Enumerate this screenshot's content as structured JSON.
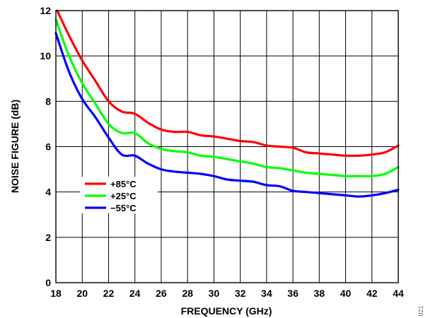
{
  "chart_data": {
    "type": "line",
    "title": "",
    "xlabel": "FREQUENCY (GHz)",
    "ylabel": "NOISE FIGURE (dB)",
    "xlim": [
      18,
      44
    ],
    "ylim": [
      0,
      12
    ],
    "xticks": [
      "18",
      "20",
      "22",
      "24",
      "26",
      "28",
      "30",
      "32",
      "34",
      "36",
      "38",
      "40",
      "42",
      "44"
    ],
    "yticks": [
      "0",
      "2",
      "4",
      "6",
      "8",
      "10",
      "12"
    ],
    "grid": true,
    "legend_position": "center-left",
    "figure_code": "021",
    "series": [
      {
        "name": "+85°C",
        "color": "#ff0000",
        "x": [
          18.1,
          19,
          20,
          21,
          22,
          23,
          24,
          25,
          26,
          27,
          28,
          29,
          30,
          31,
          32,
          33,
          34,
          35,
          36,
          37,
          38,
          39,
          40,
          41,
          42,
          43,
          44
        ],
        "y": [
          12,
          10.9,
          9.8,
          8.9,
          8.0,
          7.55,
          7.45,
          7.05,
          6.75,
          6.65,
          6.65,
          6.5,
          6.45,
          6.35,
          6.25,
          6.2,
          6.05,
          6.0,
          5.95,
          5.75,
          5.7,
          5.65,
          5.6,
          5.6,
          5.65,
          5.75,
          6.05
        ]
      },
      {
        "name": "+25°C",
        "color": "#00ff00",
        "x": [
          18,
          19,
          20,
          21,
          22,
          23,
          24,
          25,
          26,
          27,
          28,
          29,
          30,
          31,
          32,
          33,
          34,
          35,
          36,
          37,
          38,
          39,
          40,
          41,
          42,
          43,
          44
        ],
        "y": [
          11.6,
          10.0,
          8.8,
          7.9,
          7.0,
          6.6,
          6.6,
          6.15,
          5.9,
          5.8,
          5.75,
          5.6,
          5.55,
          5.45,
          5.35,
          5.25,
          5.1,
          5.05,
          4.95,
          4.85,
          4.8,
          4.75,
          4.7,
          4.7,
          4.7,
          4.8,
          5.1
        ]
      },
      {
        "name": "−55°C",
        "color": "#0000ff",
        "x": [
          18,
          19,
          20,
          21,
          22,
          23,
          24,
          25,
          26,
          27,
          28,
          29,
          30,
          31,
          32,
          33,
          34,
          35,
          36,
          37,
          38,
          39,
          40,
          41,
          42,
          43,
          44
        ],
        "y": [
          11.0,
          9.3,
          8.1,
          7.3,
          6.4,
          5.65,
          5.6,
          5.25,
          5.0,
          4.9,
          4.85,
          4.8,
          4.7,
          4.55,
          4.5,
          4.45,
          4.3,
          4.25,
          4.05,
          4.0,
          3.95,
          3.9,
          3.85,
          3.8,
          3.85,
          3.95,
          4.1
        ]
      }
    ]
  }
}
